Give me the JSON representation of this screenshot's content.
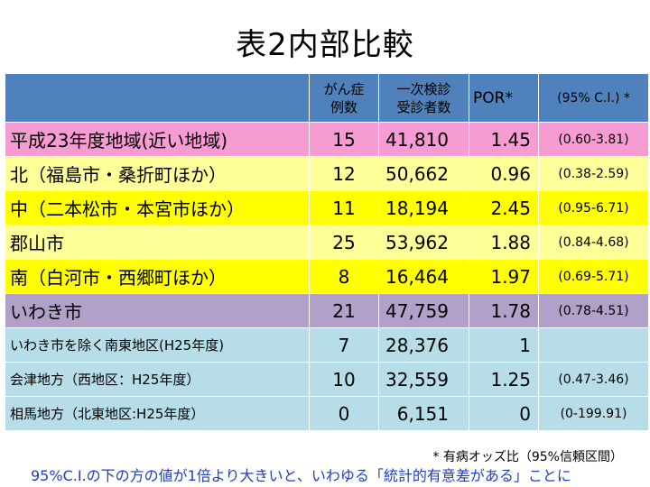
{
  "title": "表2内部比較",
  "table": {
    "headers": {
      "cases_line1": "がん症",
      "cases_line2": "例数",
      "exam_line1": "一次検診",
      "exam_line2": "受診者数",
      "por": "POR*",
      "ci": "(95% C.I.) *"
    },
    "rows": [
      {
        "name": "平成23年度地域(近い地域)",
        "cases": "15",
        "examinees": "41,810",
        "por": "1.45",
        "ci": "(0.60-3.81)"
      },
      {
        "name": "北（福島市・桑折町ほか）",
        "cases": "12",
        "examinees": "50,662",
        "por": "0.96",
        "ci": "(0.38-2.59)"
      },
      {
        "name": "中（二本松市・本宮市ほか）",
        "cases": "11",
        "examinees": "18,194",
        "por": "2.45",
        "ci": "(0.95-6.71)"
      },
      {
        "name": "郡山市",
        "cases": "25",
        "examinees": "53,962",
        "por": "1.88",
        "ci": "(0.84-4.68)"
      },
      {
        "name": "南（白河市・西郷町ほか）",
        "cases": "8",
        "examinees": "16,464",
        "por": "1.97",
        "ci": "(0.69-5.71)"
      },
      {
        "name": "いわき市",
        "cases": "21",
        "examinees": "47,759",
        "por": "1.78",
        "ci": "(0.78-4.51)"
      },
      {
        "name": "いわき市を除く南東地区(H25年度)",
        "cases": "7",
        "examinees": "28,376",
        "por": "1",
        "ci": ""
      },
      {
        "name": "会津地方（西地区：H25年度）",
        "cases": "10",
        "examinees": "32,559",
        "por": "1.25",
        "ci": "(0.47-3.46)"
      },
      {
        "name": "相馬地方（北東地区:H25年度）",
        "cases": "0",
        "examinees": "6,151",
        "por": "0",
        "ci": "(0-199.91)"
      }
    ]
  },
  "footnote": "* 有病オッズ比（95%信頼区間）",
  "bottom_note": "95%C.I.の下の方の値が1倍より大きいと、いわゆる「統計的有意差がある」ことに",
  "colors": {
    "header": "#4f81bd",
    "pink": "#f79bd3",
    "light_yellow": "#ffff99",
    "yellow": "#ffff00",
    "purple": "#b1a0c7",
    "cyan": "#b7dee8",
    "note_blue": "#1f3fbf"
  }
}
